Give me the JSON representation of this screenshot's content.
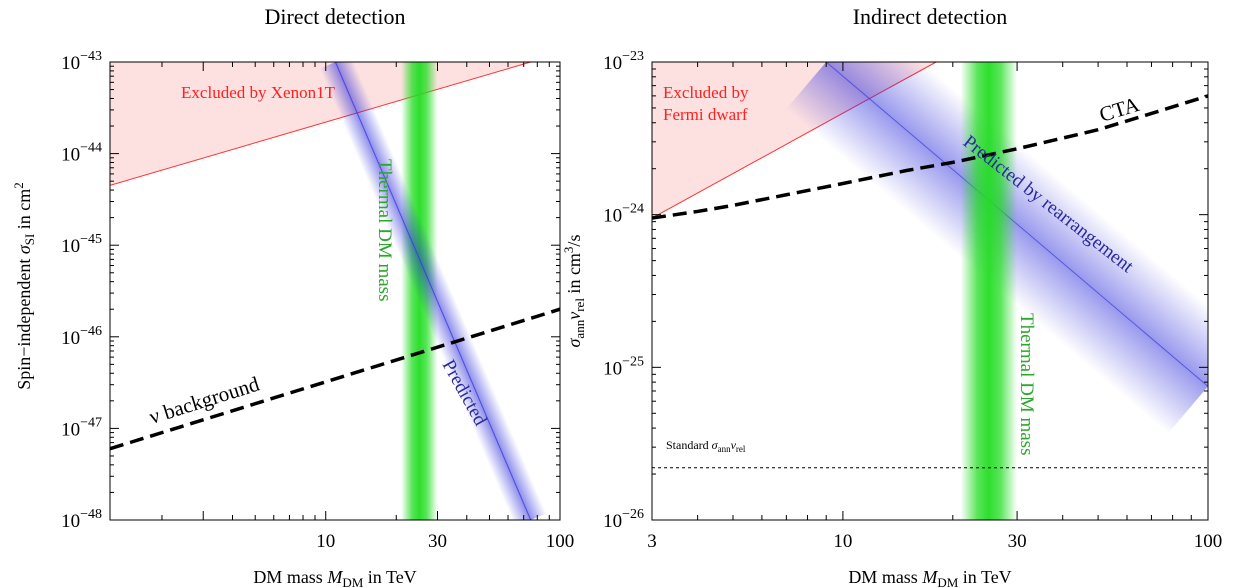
{
  "chart_data": [
    {
      "type": "line",
      "title": "Direct detection",
      "xlabel_prefix": "DM mass ",
      "xlabel_var": "M",
      "xlabel_sub": "DM",
      "xlabel_suffix": " in TeV",
      "ylabel_prefix": "Spin−independent ",
      "ylabel_var": "σ",
      "ylabel_sub": "SI",
      "ylabel_suffix": " in cm",
      "ylabel_sup": "2",
      "x_scale": "log",
      "y_scale": "log",
      "xlim": [
        1.2,
        100
      ],
      "ylim": [
        1e-48,
        1e-43
      ],
      "x_ticks": [
        {
          "value": 10,
          "label": "10"
        },
        {
          "value": 30,
          "label": "30"
        },
        {
          "value": 100,
          "label": "100"
        }
      ],
      "y_ticks": [
        {
          "value": -43,
          "base": "10",
          "exp": "−43"
        },
        {
          "value": -44,
          "base": "10",
          "exp": "−44"
        },
        {
          "value": -45,
          "base": "10",
          "exp": "−45"
        },
        {
          "value": -46,
          "base": "10",
          "exp": "−46"
        },
        {
          "value": -47,
          "base": "10",
          "exp": "−47"
        },
        {
          "value": -48,
          "base": "10",
          "exp": "−48"
        }
      ],
      "series": [
        {
          "name": "Excluded by Xenon1T",
          "kind": "excluded_region",
          "color": "#ff0000",
          "fill": "#fde0e0",
          "points": [
            [
              1.2,
              4.5e-45
            ],
            [
              75,
              1e-43
            ]
          ]
        },
        {
          "name": "Predicted",
          "kind": "band",
          "color": "#3a3ad8",
          "points": [
            [
              11,
              1e-43
            ],
            [
              75,
              1e-48
            ]
          ]
        },
        {
          "name": "ν background",
          "kind": "dashed",
          "color": "#000000",
          "points": [
            [
              1.2,
              6e-48
            ],
            [
              100,
              2e-46
            ]
          ]
        },
        {
          "name": "Thermal DM mass",
          "kind": "vertical_band",
          "color": "#22dd22",
          "x": 25,
          "x_range": [
            21,
            30
          ]
        }
      ]
    },
    {
      "type": "line",
      "title": "Indirect detection",
      "xlabel_prefix": "DM mass ",
      "xlabel_var": "M",
      "xlabel_sub": "DM",
      "xlabel_suffix": " in TeV",
      "ylabel_var": "σ",
      "ylabel_sub": "ann",
      "ylabel_var2": "v",
      "ylabel_sub2": "rel",
      "ylabel_suffix": " in cm",
      "ylabel_sup": "3",
      "ylabel_tail": "/s",
      "x_scale": "log",
      "y_scale": "log",
      "xlim": [
        3,
        100
      ],
      "ylim": [
        1e-26,
        1e-23
      ],
      "x_ticks": [
        {
          "value": 3,
          "label": "3"
        },
        {
          "value": 10,
          "label": "10"
        },
        {
          "value": 30,
          "label": "30"
        },
        {
          "value": 100,
          "label": "100"
        }
      ],
      "y_ticks": [
        {
          "value": -23,
          "base": "10",
          "exp": "−23"
        },
        {
          "value": -24,
          "base": "10",
          "exp": "−24"
        },
        {
          "value": -25,
          "base": "10",
          "exp": "−25"
        },
        {
          "value": -26,
          "base": "10",
          "exp": "−26"
        }
      ],
      "fermi_label_line1": "Excluded by",
      "fermi_label_line2": "Fermi dwarf",
      "standard_label_prefix": "Standard ",
      "standard_label_var": "σ",
      "standard_label_sub": "ann",
      "standard_label_var2": "v",
      "standard_label_sub2": "rel",
      "series": [
        {
          "name": "Excluded by Fermi dwarf",
          "kind": "excluded_region",
          "color": "#ff0000",
          "fill": "#fde0e0",
          "points": [
            [
              3,
              9.5e-25
            ],
            [
              18,
              1e-23
            ]
          ]
        },
        {
          "name": "Predicted by rearrangement",
          "kind": "band",
          "color": "#3a3ad8",
          "points": [
            [
              9,
              1e-23
            ],
            [
              100,
              7.5e-26
            ]
          ]
        },
        {
          "name": "CTA",
          "kind": "dashed",
          "color": "#000000",
          "points": [
            [
              3,
              9.5e-25
            ],
            [
              4,
              1.05e-24
            ],
            [
              5,
              1.15e-24
            ],
            [
              7,
              1.35e-24
            ],
            [
              10,
              1.6e-24
            ],
            [
              15,
              1.95e-24
            ],
            [
              20,
              2.2e-24
            ],
            [
              30,
              2.7e-24
            ],
            [
              50,
              3.6e-24
            ],
            [
              70,
              4.6e-24
            ],
            [
              100,
              6e-24
            ]
          ]
        },
        {
          "name": "Standard σannvrel",
          "kind": "dotted",
          "color": "#000000",
          "y": 2.2e-26
        },
        {
          "name": "Thermal DM mass",
          "kind": "vertical_band",
          "color": "#22dd22",
          "x": 25,
          "x_range": [
            21,
            30
          ]
        }
      ]
    }
  ]
}
